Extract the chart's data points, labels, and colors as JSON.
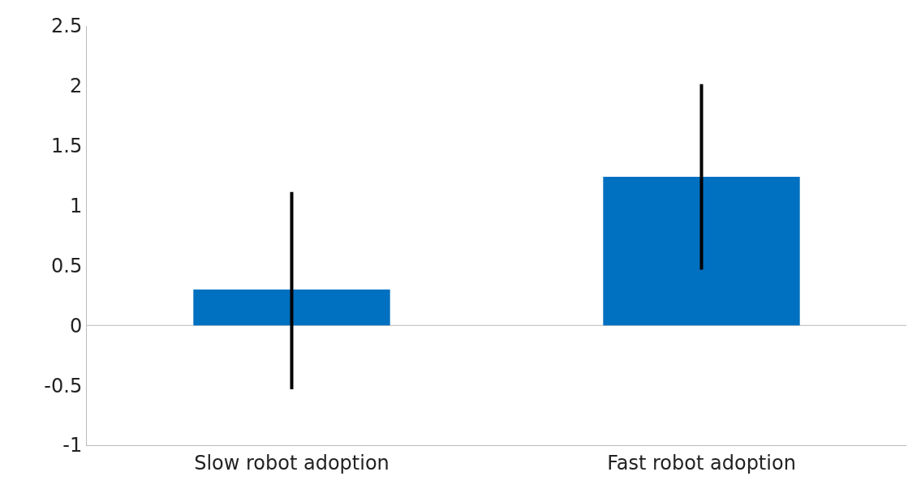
{
  "chart_data": {
    "type": "bar",
    "categories": [
      "Slow robot adoption",
      "Fast robot adoption"
    ],
    "values": [
      0.3,
      1.24
    ],
    "errors": [
      [
        -0.52,
        1.1
      ],
      [
        0.48,
        2.0
      ]
    ],
    "color": "#0070c0",
    "ylim": [
      -1,
      2.5
    ],
    "yticks": [
      -1,
      -0.5,
      0,
      0.5,
      1,
      1.5,
      2,
      2.5
    ],
    "ref_lines": [
      {
        "axis": "y",
        "value": 0,
        "color": "#bbbbbb"
      }
    ],
    "grid": false,
    "legend": false
  }
}
